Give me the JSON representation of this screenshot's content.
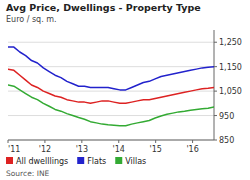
{
  "chart_data": {
    "type": "line",
    "title": "Avg Price, Dwellings - Property Type",
    "subtitle": "Euro / sq. m.",
    "annotations": [
      "Source: INE"
    ],
    "x": [
      2011,
      2011.1594,
      2011.3189,
      2011.4783,
      2011.6377,
      2011.7971,
      2011.9566,
      2012.116,
      2012.2754,
      2012.4349,
      2012.5943,
      2012.7537,
      2012.9131,
      2013.0726,
      2013.232,
      2013.3914,
      2013.5509,
      2013.7103,
      2013.8697,
      2014.0291,
      2014.1886,
      2014.348,
      2014.5074,
      2014.6669,
      2014.8263,
      2014.9857,
      2015.1451,
      2015.3046,
      2015.464,
      2015.6234,
      2015.7829,
      2015.9423,
      2016.1017,
      2016.2611,
      2016.4206,
      2016.58
    ],
    "series": [
      {
        "name": "All dwelllings",
        "color": "#dd2222",
        "values": [
          1140,
          1135,
          1115,
          1095,
          1075,
          1065,
          1050,
          1040,
          1030,
          1025,
          1015,
          1010,
          1005,
          1005,
          1000,
          1005,
          1010,
          1010,
          1005,
          1000,
          1000,
          1005,
          1010,
          1015,
          1015,
          1020,
          1025,
          1030,
          1035,
          1040,
          1045,
          1050,
          1055,
          1060,
          1062,
          1065
        ]
      },
      {
        "name": "Flats",
        "color": "#2222cc",
        "values": [
          1230,
          1230,
          1210,
          1195,
          1175,
          1165,
          1145,
          1130,
          1115,
          1105,
          1090,
          1080,
          1070,
          1070,
          1065,
          1065,
          1065,
          1065,
          1060,
          1055,
          1055,
          1065,
          1075,
          1085,
          1090,
          1100,
          1110,
          1115,
          1120,
          1125,
          1130,
          1135,
          1140,
          1145,
          1148,
          1150
        ]
      },
      {
        "name": "Villas",
        "color": "#33aa33",
        "values": [
          1075,
          1070,
          1055,
          1040,
          1025,
          1015,
          1000,
          988,
          975,
          968,
          958,
          950,
          942,
          935,
          925,
          920,
          915,
          912,
          910,
          908,
          908,
          915,
          920,
          925,
          930,
          940,
          948,
          955,
          960,
          965,
          968,
          972,
          975,
          978,
          980,
          985
        ]
      }
    ],
    "xlim": [
      2011.0,
      2016.58
    ],
    "xticks": [
      {
        "value": 2011,
        "label": "'11"
      },
      {
        "value": 2012,
        "label": "'12"
      },
      {
        "value": 2013,
        "label": "'13"
      },
      {
        "value": 2014,
        "label": "'14"
      },
      {
        "value": 2015,
        "label": "'15"
      },
      {
        "value": 2016,
        "label": "'16"
      }
    ],
    "ylim": [
      850,
      1300
    ],
    "yticks": [
      850,
      950,
      {
        "value": 1050,
        "label": "1,050"
      },
      {
        "value": 1150,
        "label": "1,150"
      },
      {
        "value": 1250,
        "label": "1,250"
      }
    ],
    "grid": true,
    "legend": "bottom"
  }
}
